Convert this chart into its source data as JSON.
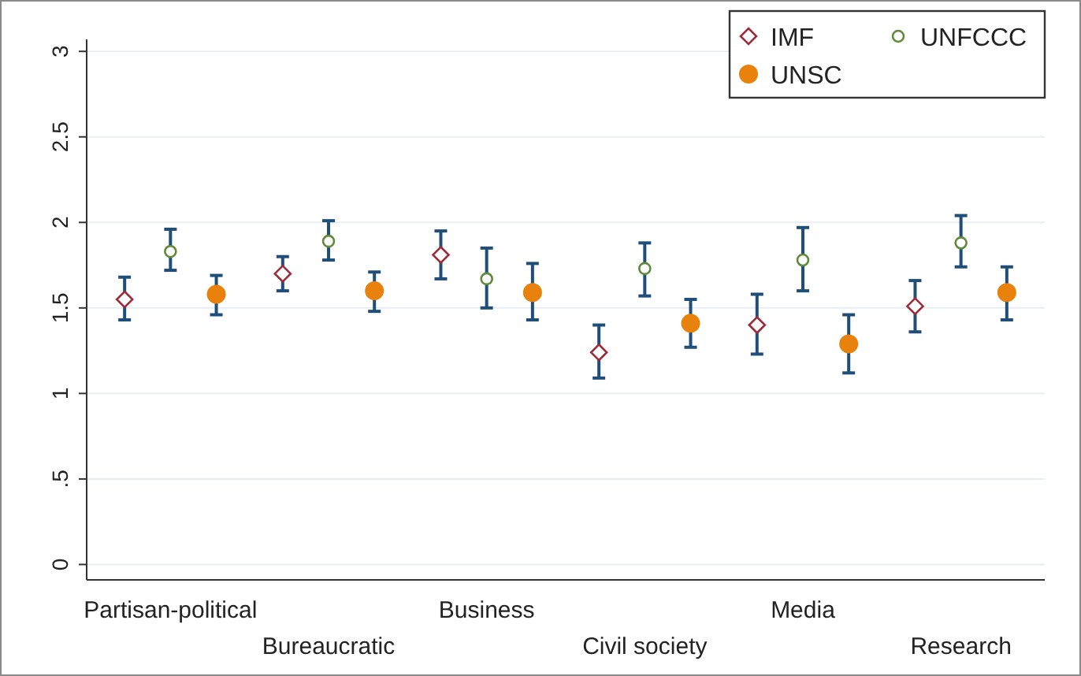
{
  "chart_data": {
    "type": "scatter",
    "categories": [
      "Partisan-political",
      "Bureaucratic",
      "Business",
      "Civil society",
      "Media",
      "Research"
    ],
    "series": [
      {
        "name": "IMF",
        "color": "#9b2d3a",
        "marker": "diamond",
        "values": [
          1.55,
          1.7,
          1.81,
          1.24,
          1.4,
          1.51
        ],
        "errors": [
          [
            1.43,
            1.68
          ],
          [
            1.6,
            1.8
          ],
          [
            1.67,
            1.95
          ],
          [
            1.09,
            1.4
          ],
          [
            1.23,
            1.58
          ],
          [
            1.36,
            1.66
          ]
        ]
      },
      {
        "name": "UNFCCC",
        "color": "#5f8a3a",
        "marker": "circle",
        "values": [
          1.83,
          1.89,
          1.67,
          1.73,
          1.78,
          1.88
        ],
        "errors": [
          [
            1.72,
            1.96
          ],
          [
            1.78,
            2.01
          ],
          [
            1.5,
            1.85
          ],
          [
            1.57,
            1.88
          ],
          [
            1.6,
            1.97
          ],
          [
            1.74,
            2.04
          ]
        ]
      },
      {
        "name": "UNSC",
        "color": "#e8820c",
        "marker": "circle",
        "values": [
          1.58,
          1.6,
          1.59,
          1.41,
          1.29,
          1.59
        ],
        "errors": [
          [
            1.46,
            1.69
          ],
          [
            1.48,
            1.71
          ],
          [
            1.43,
            1.76
          ],
          [
            1.27,
            1.55
          ],
          [
            1.12,
            1.46
          ],
          [
            1.43,
            1.74
          ]
        ]
      }
    ],
    "ylim": [
      -0.09,
      3.07
    ],
    "yticks": [
      0,
      {
        "value": 0.5,
        "label": ".5"
      },
      1,
      1.5,
      2,
      2.5,
      3
    ],
    "grid": "y",
    "legend": "top right"
  }
}
